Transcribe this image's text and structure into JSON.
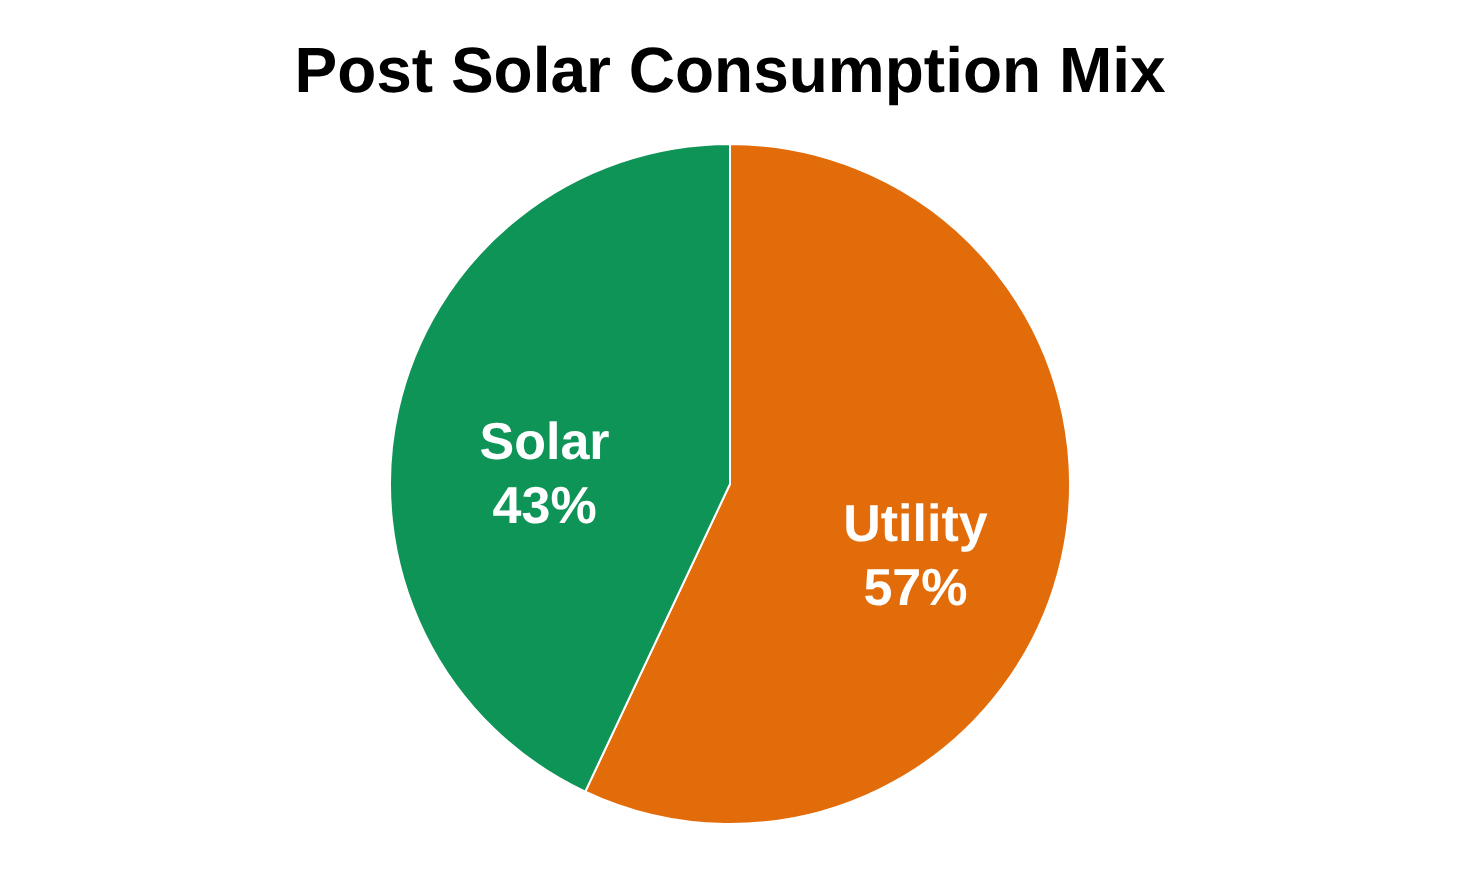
{
  "chart_data": {
    "type": "pie",
    "title": "Post Solar Consumption Mix",
    "categories": [
      "Utility",
      "Solar"
    ],
    "values": [
      57,
      43
    ],
    "colors": [
      "#e36c0a",
      "#0f9458"
    ],
    "value_labels": [
      "57%",
      "43%"
    ],
    "legend": false
  }
}
